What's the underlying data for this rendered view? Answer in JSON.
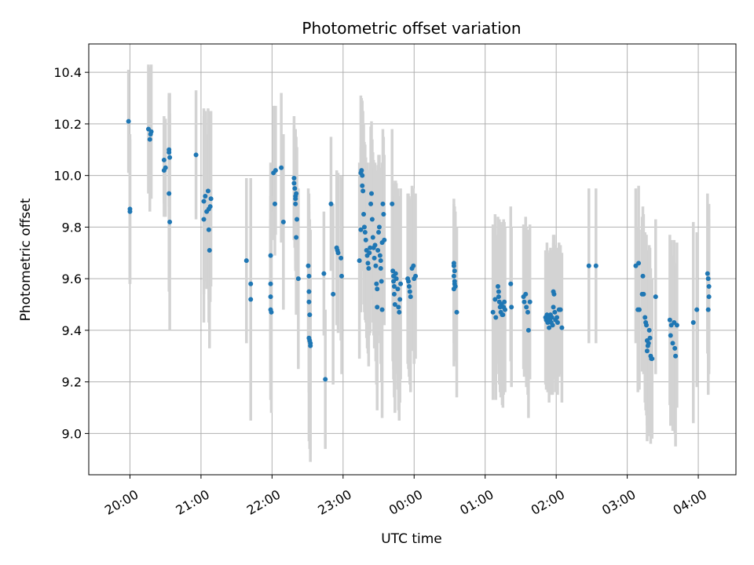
{
  "chart_data": {
    "type": "scatter",
    "title": "Photometric offset variation",
    "xlabel": "UTC time",
    "ylabel": "Photometric offset",
    "x_unit": "hours after 19:00 UTC",
    "xlim": [
      0.42,
      9.53
    ],
    "ylim": [
      8.84,
      10.51
    ],
    "x_ticks": [
      {
        "value": 1,
        "label": "20:00"
      },
      {
        "value": 2,
        "label": "21:00"
      },
      {
        "value": 3,
        "label": "22:00"
      },
      {
        "value": 4,
        "label": "23:00"
      },
      {
        "value": 5,
        "label": "00:00"
      },
      {
        "value": 6,
        "label": "01:00"
      },
      {
        "value": 7,
        "label": "02:00"
      },
      {
        "value": 8,
        "label": "03:00"
      },
      {
        "value": 9,
        "label": "04:00"
      }
    ],
    "y_ticks": [
      {
        "value": 9.0,
        "label": "9.0"
      },
      {
        "value": 9.2,
        "label": "9.2"
      },
      {
        "value": 9.4,
        "label": "9.4"
      },
      {
        "value": 9.6,
        "label": "9.6"
      },
      {
        "value": 9.8,
        "label": "9.8"
      },
      {
        "value": 10.0,
        "label": "10.0"
      },
      {
        "value": 10.2,
        "label": "10.2"
      },
      {
        "value": 10.4,
        "label": "10.4"
      }
    ],
    "grid": true,
    "colors": {
      "points": "#1f77b4",
      "error_bars": "#d3d3d3",
      "grid": "#b0b0b0"
    },
    "points": [
      {
        "x": 0.98,
        "y": 10.21,
        "err": 0.2
      },
      {
        "x": 1.0,
        "y": 9.87,
        "err": 0.29
      },
      {
        "x": 1.0,
        "y": 9.86,
        "err": 0.28
      },
      {
        "x": 1.26,
        "y": 10.18,
        "err": 0.25
      },
      {
        "x": 1.28,
        "y": 10.14,
        "err": 0.28
      },
      {
        "x": 1.3,
        "y": 10.17,
        "err": 0.26
      },
      {
        "x": 1.29,
        "y": 10.16,
        "err": 0.24
      },
      {
        "x": 1.48,
        "y": 10.02,
        "err": 0.18
      },
      {
        "x": 1.48,
        "y": 10.06,
        "err": 0.17
      },
      {
        "x": 1.5,
        "y": 10.03,
        "err": 0.19
      },
      {
        "x": 1.55,
        "y": 10.1,
        "err": 0.22
      },
      {
        "x": 1.55,
        "y": 10.09,
        "err": 0.21
      },
      {
        "x": 1.56,
        "y": 10.07,
        "err": 0.25
      },
      {
        "x": 1.55,
        "y": 9.93,
        "err": 0.38
      },
      {
        "x": 1.56,
        "y": 9.82,
        "err": 0.42
      },
      {
        "x": 1.93,
        "y": 10.08,
        "err": 0.25
      },
      {
        "x": 2.04,
        "y": 9.9,
        "err": 0.36
      },
      {
        "x": 2.04,
        "y": 9.83,
        "err": 0.4
      },
      {
        "x": 2.06,
        "y": 9.92,
        "err": 0.33
      },
      {
        "x": 2.08,
        "y": 9.86,
        "err": 0.3
      },
      {
        "x": 2.1,
        "y": 9.94,
        "err": 0.32
      },
      {
        "x": 2.11,
        "y": 9.87,
        "err": 0.35
      },
      {
        "x": 2.11,
        "y": 9.79,
        "err": 0.36
      },
      {
        "x": 2.12,
        "y": 9.71,
        "err": 0.38
      },
      {
        "x": 2.13,
        "y": 9.88,
        "err": 0.37
      },
      {
        "x": 2.14,
        "y": 9.91,
        "err": 0.34
      },
      {
        "x": 2.64,
        "y": 9.67,
        "err": 0.32
      },
      {
        "x": 2.7,
        "y": 9.58,
        "err": 0.37
      },
      {
        "x": 2.7,
        "y": 9.52,
        "err": 0.47
      },
      {
        "x": 2.98,
        "y": 9.69,
        "err": 0.36
      },
      {
        "x": 2.98,
        "y": 9.58,
        "err": 0.34
      },
      {
        "x": 2.98,
        "y": 9.53,
        "err": 0.33
      },
      {
        "x": 2.98,
        "y": 9.48,
        "err": 0.35
      },
      {
        "x": 2.99,
        "y": 9.47,
        "err": 0.39
      },
      {
        "x": 3.02,
        "y": 10.01,
        "err": 0.26
      },
      {
        "x": 3.04,
        "y": 9.89,
        "err": 0.2
      },
      {
        "x": 3.05,
        "y": 10.02,
        "err": 0.25
      },
      {
        "x": 3.13,
        "y": 10.03,
        "err": 0.29
      },
      {
        "x": 3.16,
        "y": 9.82,
        "err": 0.34
      },
      {
        "x": 3.31,
        "y": 9.99,
        "err": 0.24
      },
      {
        "x": 3.31,
        "y": 9.97,
        "err": 0.22
      },
      {
        "x": 3.32,
        "y": 9.95,
        "err": 0.23
      },
      {
        "x": 3.33,
        "y": 9.92,
        "err": 0.25
      },
      {
        "x": 3.33,
        "y": 9.91,
        "err": 0.27
      },
      {
        "x": 3.33,
        "y": 9.89,
        "err": 0.26
      },
      {
        "x": 3.34,
        "y": 9.93,
        "err": 0.22
      },
      {
        "x": 3.35,
        "y": 9.83,
        "err": 0.28
      },
      {
        "x": 3.34,
        "y": 9.76,
        "err": 0.3
      },
      {
        "x": 3.37,
        "y": 9.6,
        "err": 0.35
      },
      {
        "x": 3.51,
        "y": 9.65,
        "err": 0.3
      },
      {
        "x": 3.52,
        "y": 9.61,
        "err": 0.32
      },
      {
        "x": 3.52,
        "y": 9.55,
        "err": 0.34
      },
      {
        "x": 3.52,
        "y": 9.51,
        "err": 0.35
      },
      {
        "x": 3.53,
        "y": 9.46,
        "err": 0.37
      },
      {
        "x": 3.52,
        "y": 9.37,
        "err": 0.4
      },
      {
        "x": 3.53,
        "y": 9.36,
        "err": 0.42
      },
      {
        "x": 3.54,
        "y": 9.35,
        "err": 0.43
      },
      {
        "x": 3.54,
        "y": 9.34,
        "err": 0.45
      },
      {
        "x": 3.73,
        "y": 9.62,
        "err": 0.24
      },
      {
        "x": 3.75,
        "y": 9.21,
        "err": 0.27
      },
      {
        "x": 3.83,
        "y": 9.89,
        "err": 0.26
      },
      {
        "x": 3.86,
        "y": 9.54,
        "err": 0.35
      },
      {
        "x": 3.91,
        "y": 9.72,
        "err": 0.3
      },
      {
        "x": 3.92,
        "y": 9.71,
        "err": 0.29
      },
      {
        "x": 3.93,
        "y": 9.7,
        "err": 0.31
      },
      {
        "x": 3.97,
        "y": 9.68,
        "err": 0.32
      },
      {
        "x": 3.98,
        "y": 9.61,
        "err": 0.38
      },
      {
        "x": 4.23,
        "y": 9.67,
        "err": 0.38
      },
      {
        "x": 4.25,
        "y": 9.79,
        "err": 0.32
      },
      {
        "x": 4.25,
        "y": 10.01,
        "err": 0.3
      },
      {
        "x": 4.26,
        "y": 10.02,
        "err": 0.28
      },
      {
        "x": 4.27,
        "y": 10.0,
        "err": 0.29
      },
      {
        "x": 4.27,
        "y": 9.96,
        "err": 0.3
      },
      {
        "x": 4.28,
        "y": 9.94,
        "err": 0.31
      },
      {
        "x": 4.29,
        "y": 9.85,
        "err": 0.35
      },
      {
        "x": 4.3,
        "y": 9.8,
        "err": 0.33
      },
      {
        "x": 4.31,
        "y": 9.78,
        "err": 0.34
      },
      {
        "x": 4.32,
        "y": 9.75,
        "err": 0.32
      },
      {
        "x": 4.33,
        "y": 9.71,
        "err": 0.34
      },
      {
        "x": 4.34,
        "y": 9.69,
        "err": 0.36
      },
      {
        "x": 4.35,
        "y": 9.66,
        "err": 0.35
      },
      {
        "x": 4.36,
        "y": 9.64,
        "err": 0.38
      },
      {
        "x": 4.37,
        "y": 9.7,
        "err": 0.32
      },
      {
        "x": 4.38,
        "y": 9.72,
        "err": 0.33
      },
      {
        "x": 4.39,
        "y": 9.89,
        "err": 0.3
      },
      {
        "x": 4.4,
        "y": 9.93,
        "err": 0.28
      },
      {
        "x": 4.41,
        "y": 9.83,
        "err": 0.31
      },
      {
        "x": 4.42,
        "y": 9.76,
        "err": 0.33
      },
      {
        "x": 4.43,
        "y": 9.72,
        "err": 0.34
      },
      {
        "x": 4.44,
        "y": 9.68,
        "err": 0.35
      },
      {
        "x": 4.45,
        "y": 9.73,
        "err": 0.32
      },
      {
        "x": 4.46,
        "y": 9.65,
        "err": 0.37
      },
      {
        "x": 4.47,
        "y": 9.58,
        "err": 0.39
      },
      {
        "x": 4.48,
        "y": 9.56,
        "err": 0.38
      },
      {
        "x": 4.48,
        "y": 9.49,
        "err": 0.4
      },
      {
        "x": 4.49,
        "y": 9.71,
        "err": 0.33
      },
      {
        "x": 4.5,
        "y": 9.78,
        "err": 0.3
      },
      {
        "x": 4.51,
        "y": 9.8,
        "err": 0.28
      },
      {
        "x": 4.52,
        "y": 9.69,
        "err": 0.34
      },
      {
        "x": 4.53,
        "y": 9.67,
        "err": 0.35
      },
      {
        "x": 4.53,
        "y": 9.64,
        "err": 0.37
      },
      {
        "x": 4.54,
        "y": 9.59,
        "err": 0.39
      },
      {
        "x": 4.55,
        "y": 9.74,
        "err": 0.31
      },
      {
        "x": 4.55,
        "y": 9.48,
        "err": 0.42
      },
      {
        "x": 4.56,
        "y": 9.89,
        "err": 0.29
      },
      {
        "x": 4.57,
        "y": 9.85,
        "err": 0.3
      },
      {
        "x": 4.58,
        "y": 9.75,
        "err": 0.33
      },
      {
        "x": 4.69,
        "y": 9.89,
        "err": 0.29
      },
      {
        "x": 4.7,
        "y": 9.63,
        "err": 0.35
      },
      {
        "x": 4.71,
        "y": 9.61,
        "err": 0.36
      },
      {
        "x": 4.71,
        "y": 9.59,
        "err": 0.38
      },
      {
        "x": 4.72,
        "y": 9.57,
        "err": 0.38
      },
      {
        "x": 4.72,
        "y": 9.54,
        "err": 0.4
      },
      {
        "x": 4.73,
        "y": 9.5,
        "err": 0.42
      },
      {
        "x": 4.74,
        "y": 9.62,
        "err": 0.36
      },
      {
        "x": 4.75,
        "y": 9.6,
        "err": 0.37
      },
      {
        "x": 4.77,
        "y": 9.56,
        "err": 0.39
      },
      {
        "x": 4.78,
        "y": 9.49,
        "err": 0.4
      },
      {
        "x": 4.79,
        "y": 9.47,
        "err": 0.42
      },
      {
        "x": 4.8,
        "y": 9.52,
        "err": 0.4
      },
      {
        "x": 4.81,
        "y": 9.58,
        "err": 0.37
      },
      {
        "x": 4.91,
        "y": 9.6,
        "err": 0.33
      },
      {
        "x": 4.92,
        "y": 9.59,
        "err": 0.34
      },
      {
        "x": 4.93,
        "y": 9.57,
        "err": 0.35
      },
      {
        "x": 4.94,
        "y": 9.55,
        "err": 0.36
      },
      {
        "x": 4.95,
        "y": 9.53,
        "err": 0.37
      },
      {
        "x": 4.97,
        "y": 9.64,
        "err": 0.32
      },
      {
        "x": 4.99,
        "y": 9.65,
        "err": 0.3
      },
      {
        "x": 5.0,
        "y": 9.6,
        "err": 0.33
      },
      {
        "x": 5.02,
        "y": 9.61,
        "err": 0.32
      },
      {
        "x": 5.56,
        "y": 9.66,
        "err": 0.25
      },
      {
        "x": 5.56,
        "y": 9.65,
        "err": 0.24
      },
      {
        "x": 5.57,
        "y": 9.63,
        "err": 0.25
      },
      {
        "x": 5.56,
        "y": 9.61,
        "err": 0.26
      },
      {
        "x": 5.57,
        "y": 9.59,
        "err": 0.27
      },
      {
        "x": 5.57,
        "y": 9.58,
        "err": 0.28
      },
      {
        "x": 5.58,
        "y": 9.57,
        "err": 0.29
      },
      {
        "x": 5.56,
        "y": 9.56,
        "err": 0.3
      },
      {
        "x": 5.6,
        "y": 9.47,
        "err": 0.33
      },
      {
        "x": 6.11,
        "y": 9.47,
        "err": 0.34
      },
      {
        "x": 6.14,
        "y": 9.52,
        "err": 0.33
      },
      {
        "x": 6.15,
        "y": 9.45,
        "err": 0.32
      },
      {
        "x": 6.18,
        "y": 9.57,
        "err": 0.27
      },
      {
        "x": 6.19,
        "y": 9.55,
        "err": 0.28
      },
      {
        "x": 6.19,
        "y": 9.53,
        "err": 0.3
      },
      {
        "x": 6.2,
        "y": 9.51,
        "err": 0.32
      },
      {
        "x": 6.21,
        "y": 9.49,
        "err": 0.33
      },
      {
        "x": 6.22,
        "y": 9.47,
        "err": 0.33
      },
      {
        "x": 6.23,
        "y": 9.5,
        "err": 0.3
      },
      {
        "x": 6.24,
        "y": 9.46,
        "err": 0.35
      },
      {
        "x": 6.25,
        "y": 9.46,
        "err": 0.36
      },
      {
        "x": 6.26,
        "y": 9.49,
        "err": 0.34
      },
      {
        "x": 6.27,
        "y": 9.51,
        "err": 0.31
      },
      {
        "x": 6.28,
        "y": 9.48,
        "err": 0.32
      },
      {
        "x": 6.36,
        "y": 9.58,
        "err": 0.3
      },
      {
        "x": 6.37,
        "y": 9.49,
        "err": 0.31
      },
      {
        "x": 6.54,
        "y": 9.53,
        "err": 0.28
      },
      {
        "x": 6.55,
        "y": 9.51,
        "err": 0.29
      },
      {
        "x": 6.57,
        "y": 9.54,
        "err": 0.3
      },
      {
        "x": 6.58,
        "y": 9.49,
        "err": 0.31
      },
      {
        "x": 6.6,
        "y": 9.47,
        "err": 0.32
      },
      {
        "x": 6.61,
        "y": 9.4,
        "err": 0.34
      },
      {
        "x": 6.63,
        "y": 9.51,
        "err": 0.3
      },
      {
        "x": 6.85,
        "y": 9.45,
        "err": 0.26
      },
      {
        "x": 6.86,
        "y": 9.44,
        "err": 0.27
      },
      {
        "x": 6.87,
        "y": 9.46,
        "err": 0.28
      },
      {
        "x": 6.88,
        "y": 9.43,
        "err": 0.27
      },
      {
        "x": 6.89,
        "y": 9.45,
        "err": 0.25
      },
      {
        "x": 6.9,
        "y": 9.41,
        "err": 0.29
      },
      {
        "x": 6.91,
        "y": 9.44,
        "err": 0.27
      },
      {
        "x": 6.92,
        "y": 9.46,
        "err": 0.26
      },
      {
        "x": 6.93,
        "y": 9.43,
        "err": 0.28
      },
      {
        "x": 6.94,
        "y": 9.45,
        "err": 0.26
      },
      {
        "x": 6.95,
        "y": 9.42,
        "err": 0.27
      },
      {
        "x": 6.96,
        "y": 9.49,
        "err": 0.25
      },
      {
        "x": 6.96,
        "y": 9.55,
        "err": 0.22
      },
      {
        "x": 6.97,
        "y": 9.54,
        "err": 0.23
      },
      {
        "x": 6.98,
        "y": 9.47,
        "err": 0.26
      },
      {
        "x": 6.99,
        "y": 9.44,
        "err": 0.28
      },
      {
        "x": 7.01,
        "y": 9.45,
        "err": 0.27
      },
      {
        "x": 7.02,
        "y": 9.43,
        "err": 0.28
      },
      {
        "x": 7.04,
        "y": 9.48,
        "err": 0.26
      },
      {
        "x": 7.06,
        "y": 9.48,
        "err": 0.25
      },
      {
        "x": 7.08,
        "y": 9.41,
        "err": 0.29
      },
      {
        "x": 7.46,
        "y": 9.65,
        "err": 0.3
      },
      {
        "x": 7.56,
        "y": 9.65,
        "err": 0.3
      },
      {
        "x": 8.12,
        "y": 9.65,
        "err": 0.3
      },
      {
        "x": 8.15,
        "y": 9.48,
        "err": 0.32
      },
      {
        "x": 8.16,
        "y": 9.66,
        "err": 0.3
      },
      {
        "x": 8.17,
        "y": 9.48,
        "err": 0.31
      },
      {
        "x": 8.21,
        "y": 9.54,
        "err": 0.3
      },
      {
        "x": 8.22,
        "y": 9.61,
        "err": 0.27
      },
      {
        "x": 8.23,
        "y": 9.54,
        "err": 0.31
      },
      {
        "x": 8.25,
        "y": 9.45,
        "err": 0.33
      },
      {
        "x": 8.26,
        "y": 9.43,
        "err": 0.34
      },
      {
        "x": 8.27,
        "y": 9.42,
        "err": 0.35
      },
      {
        "x": 8.28,
        "y": 9.36,
        "err": 0.33
      },
      {
        "x": 8.28,
        "y": 9.32,
        "err": 0.35
      },
      {
        "x": 8.29,
        "y": 9.34,
        "err": 0.34
      },
      {
        "x": 8.3,
        "y": 9.35,
        "err": 0.36
      },
      {
        "x": 8.31,
        "y": 9.4,
        "err": 0.33
      },
      {
        "x": 8.32,
        "y": 9.37,
        "err": 0.35
      },
      {
        "x": 8.33,
        "y": 9.3,
        "err": 0.34
      },
      {
        "x": 8.34,
        "y": 9.29,
        "err": 0.3
      },
      {
        "x": 8.35,
        "y": 9.29,
        "err": 0.31
      },
      {
        "x": 8.4,
        "y": 9.53,
        "err": 0.3
      },
      {
        "x": 8.6,
        "y": 9.44,
        "err": 0.33
      },
      {
        "x": 8.61,
        "y": 9.38,
        "err": 0.35
      },
      {
        "x": 8.62,
        "y": 9.42,
        "err": 0.33
      },
      {
        "x": 8.64,
        "y": 9.35,
        "err": 0.34
      },
      {
        "x": 8.66,
        "y": 9.43,
        "err": 0.32
      },
      {
        "x": 8.67,
        "y": 9.33,
        "err": 0.33
      },
      {
        "x": 8.68,
        "y": 9.3,
        "err": 0.35
      },
      {
        "x": 8.7,
        "y": 9.42,
        "err": 0.32
      },
      {
        "x": 8.93,
        "y": 9.43,
        "err": 0.39
      },
      {
        "x": 8.98,
        "y": 9.48,
        "err": 0.3
      },
      {
        "x": 9.13,
        "y": 9.62,
        "err": 0.31
      },
      {
        "x": 9.14,
        "y": 9.6,
        "err": 0.29
      },
      {
        "x": 9.15,
        "y": 9.57,
        "err": 0.32
      },
      {
        "x": 9.15,
        "y": 9.53,
        "err": 0.3
      },
      {
        "x": 9.14,
        "y": 9.48,
        "err": 0.33
      }
    ]
  }
}
